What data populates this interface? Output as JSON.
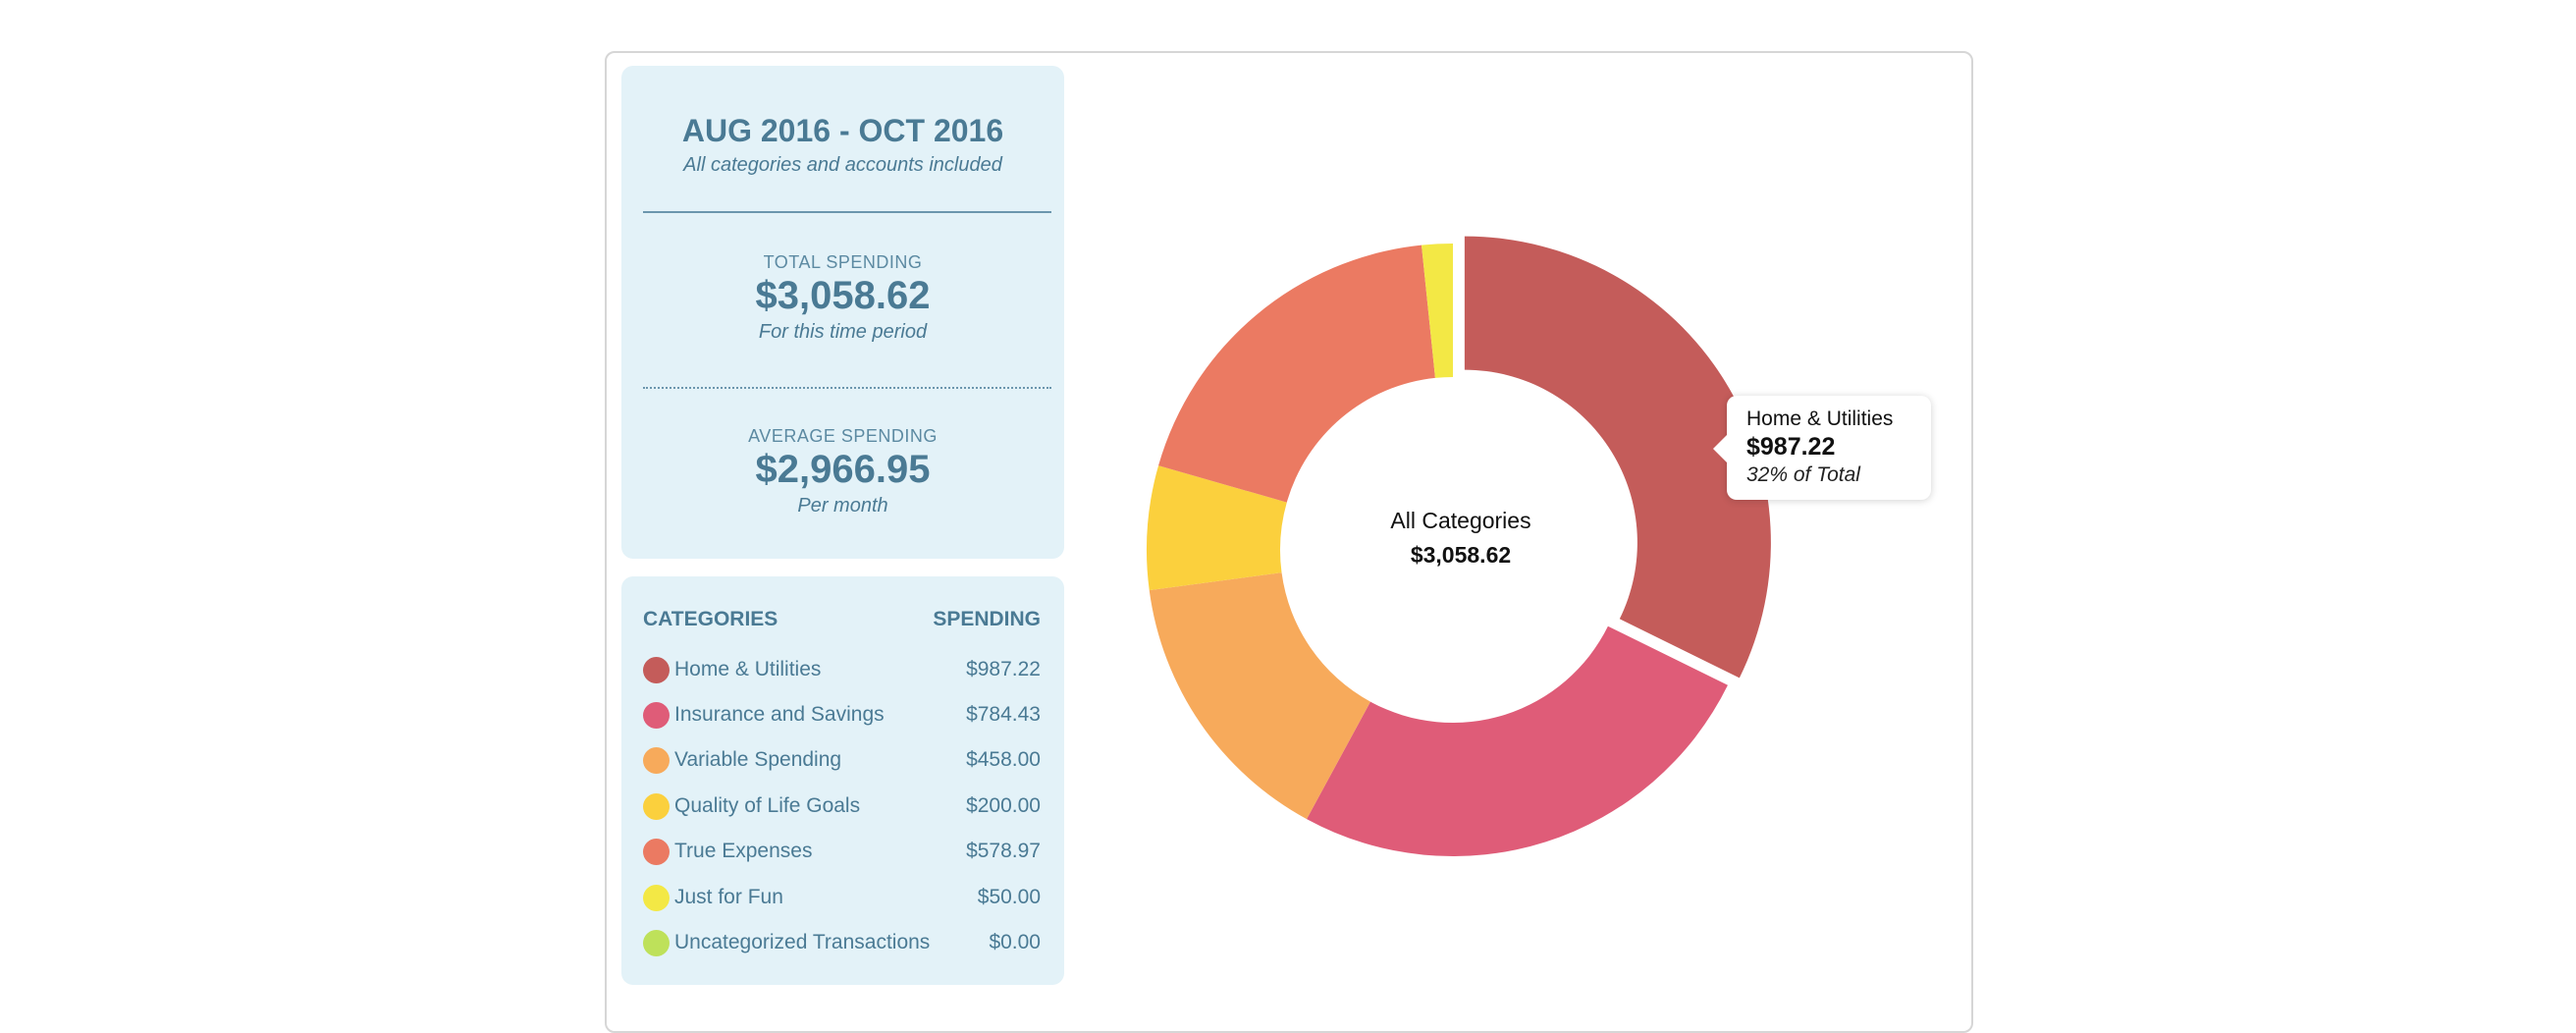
{
  "summary": {
    "period_title": "AUG 2016 - OCT 2016",
    "period_subtitle": "All categories and accounts included",
    "total_label": "TOTAL SPENDING",
    "total_value": "$3,058.62",
    "total_sub": "For this time period",
    "average_label": "AVERAGE SPENDING",
    "average_value": "$2,966.95",
    "average_sub": "Per month"
  },
  "categories_panel": {
    "header_left": "CATEGORIES",
    "header_right": "SPENDING",
    "rows": [
      {
        "name": "Home & Utilities",
        "amount": "$987.22",
        "color": "#c45c5a"
      },
      {
        "name": "Insurance and Savings",
        "amount": "$784.43",
        "color": "#df5c78"
      },
      {
        "name": "Variable Spending",
        "amount": "$458.00",
        "color": "#f7aa5b"
      },
      {
        "name": "Quality of Life Goals",
        "amount": "$200.00",
        "color": "#fbd03d"
      },
      {
        "name": "True Expenses",
        "amount": "$578.97",
        "color": "#eb7a62"
      },
      {
        "name": "Just for Fun",
        "amount": "$50.00",
        "color": "#f3e845"
      },
      {
        "name": "Uncategorized Transactions",
        "amount": "$0.00",
        "color": "#bee15a"
      }
    ]
  },
  "chart_data": {
    "type": "pie",
    "variant": "donut",
    "center_label": "All Categories",
    "center_value": "$3,058.62",
    "categories": [
      "Home & Utilities",
      "Insurance and Savings",
      "Variable Spending",
      "Quality of Life Goals",
      "True Expenses",
      "Just for Fun",
      "Uncategorized Transactions"
    ],
    "values": [
      987.22,
      784.43,
      458.0,
      200.0,
      578.97,
      50.0,
      0.0
    ],
    "colors": [
      "#c45c5a",
      "#df5c78",
      "#f7aa5b",
      "#fbd03d",
      "#eb7a62",
      "#f3e845",
      "#bee15a"
    ],
    "highlighted_index": 0,
    "tooltip": {
      "name": "Home & Utilities",
      "value": "$987.22",
      "percent_text": "32% of Total"
    }
  }
}
